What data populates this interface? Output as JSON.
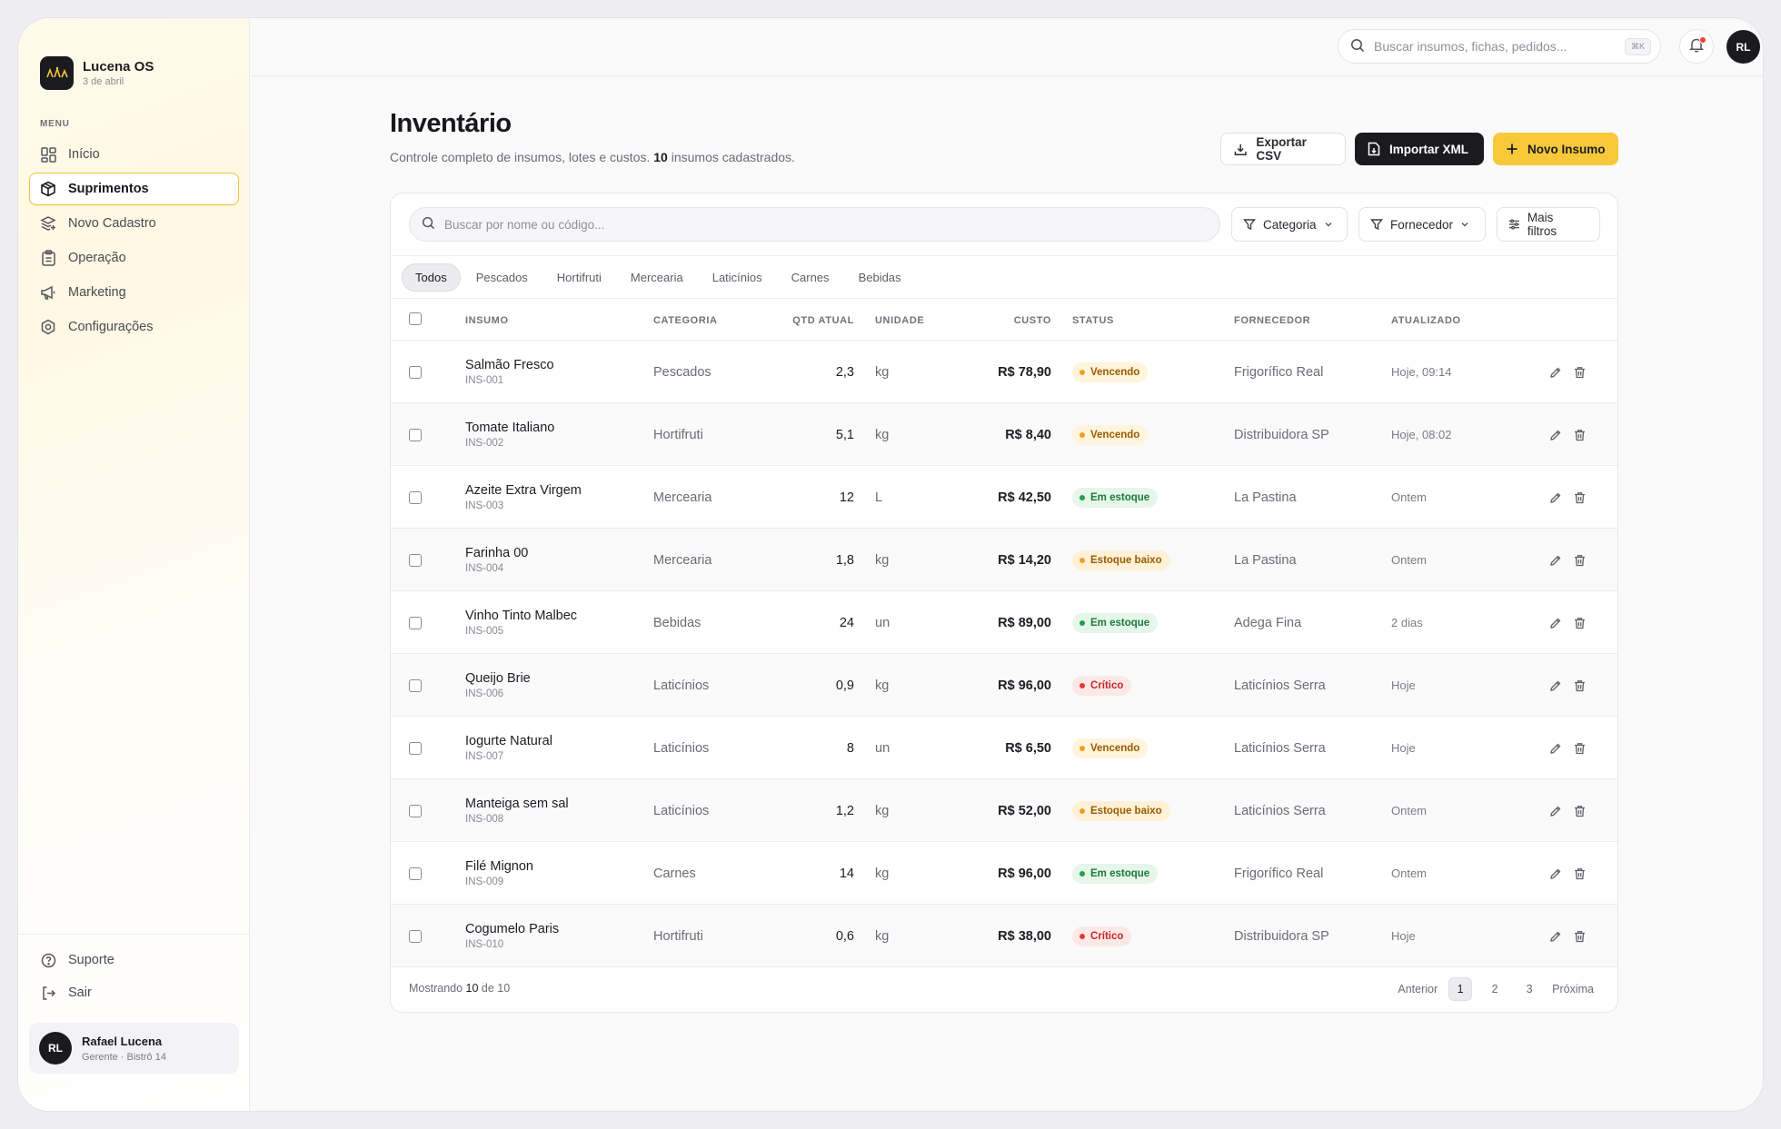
{
  "sidebar": {
    "brand_name": "Lucena OS",
    "brand_date": "3 de abril",
    "menu_label": "MENU",
    "items": [
      {
        "label": "Início",
        "icon": "grid-icon"
      },
      {
        "label": "Suprimentos",
        "icon": "box-icon",
        "active": true
      },
      {
        "label": "Novo Cadastro",
        "icon": "layers-plus-icon"
      },
      {
        "label": "Operação",
        "icon": "clipboard-icon"
      },
      {
        "label": "Marketing",
        "icon": "megaphone-icon"
      },
      {
        "label": "Configurações",
        "icon": "settings-icon"
      }
    ],
    "support_label": "Suporte",
    "logout_label": "Sair",
    "user": {
      "initials": "RL",
      "name": "Rafael Lucena",
      "role": "Gerente · Bistrô 14"
    }
  },
  "topbar": {
    "search_placeholder": "Buscar insumos, fichas, pedidos...",
    "shortcut": "⌘K",
    "avatar_initials": "RL"
  },
  "page": {
    "title": "Inventário",
    "subtitle_pre": "Controle completo de insumos, lotes e custos. ",
    "subtitle_count": "10",
    "subtitle_post": " insumos cadastrados.",
    "export_label": "Exportar CSV",
    "import_label": "Importar XML",
    "new_label": "Novo Insumo"
  },
  "table_controls": {
    "search_placeholder": "Buscar por nome ou código...",
    "filter_category": "Categoria",
    "filter_supplier": "Fornecedor",
    "more_filters": "Mais filtros",
    "tabs": [
      "Todos",
      "Pescados",
      "Hortifruti",
      "Mercearia",
      "Laticínios",
      "Carnes",
      "Bebidas"
    ],
    "active_tab": "Todos"
  },
  "columns": {
    "insumo": "INSUMO",
    "categoria": "CATEGORIA",
    "qtd": "QTD ATUAL",
    "unidade": "UNIDADE",
    "custo": "CUSTO",
    "status": "STATUS",
    "fornecedor": "FORNECEDOR",
    "atualizado": "ATUALIZADO"
  },
  "status_colors": {
    "Vencendo": {
      "bg": "#fff4dc",
      "fg": "#9a5b00",
      "dot": "#f0a020"
    },
    "Em estoque": {
      "bg": "#e6f6ea",
      "fg": "#1c7a3a",
      "dot": "#22a04b"
    },
    "Estoque baixo": {
      "bg": "#fff1d8",
      "fg": "#9a5b00",
      "dot": "#f0a020"
    },
    "Crítico": {
      "bg": "#fde8e8",
      "fg": "#c62828",
      "dot": "#e53935"
    }
  },
  "rows": [
    {
      "name": "Salmão Fresco",
      "code": "INS-001",
      "category": "Pescados",
      "qty": "2,3",
      "unit": "kg",
      "cost": "R$ 78,90",
      "status": "Vencendo",
      "supplier": "Frigorífico Real",
      "updated": "Hoje, 09:14"
    },
    {
      "name": "Tomate Italiano",
      "code": "INS-002",
      "category": "Hortifruti",
      "qty": "5,1",
      "unit": "kg",
      "cost": "R$ 8,40",
      "status": "Vencendo",
      "supplier": "Distribuidora SP",
      "updated": "Hoje, 08:02"
    },
    {
      "name": "Azeite Extra Virgem",
      "code": "INS-003",
      "category": "Mercearia",
      "qty": "12",
      "unit": "L",
      "cost": "R$ 42,50",
      "status": "Em estoque",
      "supplier": "La Pastina",
      "updated": "Ontem"
    },
    {
      "name": "Farinha 00",
      "code": "INS-004",
      "category": "Mercearia",
      "qty": "1,8",
      "unit": "kg",
      "cost": "R$ 14,20",
      "status": "Estoque baixo",
      "supplier": "La Pastina",
      "updated": "Ontem"
    },
    {
      "name": "Vinho Tinto Malbec",
      "code": "INS-005",
      "category": "Bebidas",
      "qty": "24",
      "unit": "un",
      "cost": "R$ 89,00",
      "status": "Em estoque",
      "supplier": "Adega Fina",
      "updated": "2 dias"
    },
    {
      "name": "Queijo Brie",
      "code": "INS-006",
      "category": "Laticínios",
      "qty": "0,9",
      "unit": "kg",
      "cost": "R$ 96,00",
      "status": "Crítico",
      "supplier": "Laticínios Serra",
      "updated": "Hoje"
    },
    {
      "name": "Iogurte Natural",
      "code": "INS-007",
      "category": "Laticínios",
      "qty": "8",
      "unit": "un",
      "cost": "R$ 6,50",
      "status": "Vencendo",
      "supplier": "Laticínios Serra",
      "updated": "Hoje"
    },
    {
      "name": "Manteiga sem sal",
      "code": "INS-008",
      "category": "Laticínios",
      "qty": "1,2",
      "unit": "kg",
      "cost": "R$ 52,00",
      "status": "Estoque baixo",
      "supplier": "Laticínios Serra",
      "updated": "Ontem"
    },
    {
      "name": "Filé Mignon",
      "code": "INS-009",
      "category": "Carnes",
      "qty": "14",
      "unit": "kg",
      "cost": "R$ 96,00",
      "status": "Em estoque",
      "supplier": "Frigorífico Real",
      "updated": "Ontem"
    },
    {
      "name": "Cogumelo Paris",
      "code": "INS-010",
      "category": "Hortifruti",
      "qty": "0,6",
      "unit": "kg",
      "cost": "R$ 38,00",
      "status": "Crítico",
      "supplier": "Distribuidora SP",
      "updated": "Hoje"
    }
  ],
  "footer": {
    "showing_pre": "Mostrando ",
    "showing_count": "10",
    "showing_post": " de 10",
    "prev": "Anterior",
    "pages": [
      "1",
      "2",
      "3"
    ],
    "current_page": "1",
    "next": "Próxima"
  }
}
